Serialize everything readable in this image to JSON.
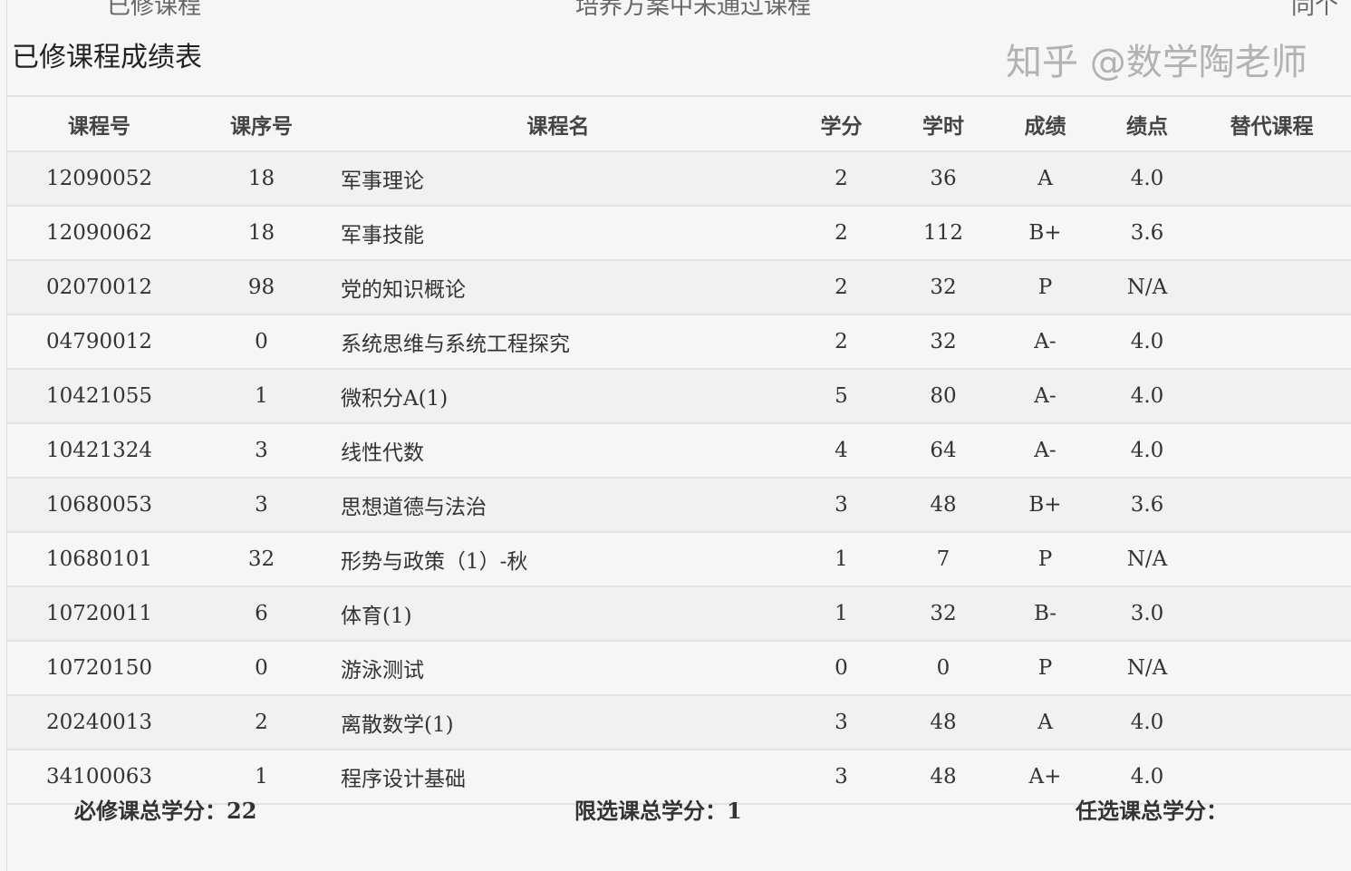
{
  "tabs": [
    "已修课程",
    "培养方案中未通过课程",
    "同个"
  ],
  "title": "已修课程成绩表",
  "columns": [
    "课程号",
    "课序号",
    "课程名",
    "学分",
    "学时",
    "成绩",
    "绩点",
    "替代课程"
  ],
  "rows": [
    [
      "12090052",
      "18",
      "军事理论",
      "2",
      "36",
      "A",
      "4.0",
      ""
    ],
    [
      "12090062",
      "18",
      "军事技能",
      "2",
      "112",
      "B+",
      "3.6",
      ""
    ],
    [
      "02070012",
      "98",
      "党的知识概论",
      "2",
      "32",
      "P",
      "N/A",
      ""
    ],
    [
      "04790012",
      "0",
      "系统思维与系统工程探究",
      "2",
      "32",
      "A-",
      "4.0",
      ""
    ],
    [
      "10421055",
      "1",
      "微积分A(1)",
      "5",
      "80",
      "A-",
      "4.0",
      ""
    ],
    [
      "10421324",
      "3",
      "线性代数",
      "4",
      "64",
      "A-",
      "4.0",
      ""
    ],
    [
      "10680053",
      "3",
      "思想道德与法治",
      "3",
      "48",
      "B+",
      "3.6",
      ""
    ],
    [
      "10680101",
      "32",
      "形势与政策（1）-秋",
      "1",
      "7",
      "P",
      "N/A",
      ""
    ],
    [
      "10720011",
      "6",
      "体育(1)",
      "1",
      "32",
      "B-",
      "3.0",
      ""
    ],
    [
      "10720150",
      "0",
      "游泳测试",
      "0",
      "0",
      "P",
      "N/A",
      ""
    ],
    [
      "20240013",
      "2",
      "离散数学(1)",
      "3",
      "48",
      "A",
      "4.0",
      ""
    ],
    [
      "34100063",
      "1",
      "程序设计基础",
      "3",
      "48",
      "A+",
      "4.0",
      ""
    ]
  ],
  "footer": {
    "required": "必修课总学分：22",
    "restricted": "限选课总学分：1",
    "elective": "任选课总学分："
  },
  "watermark": "知乎 @数学陶老师"
}
